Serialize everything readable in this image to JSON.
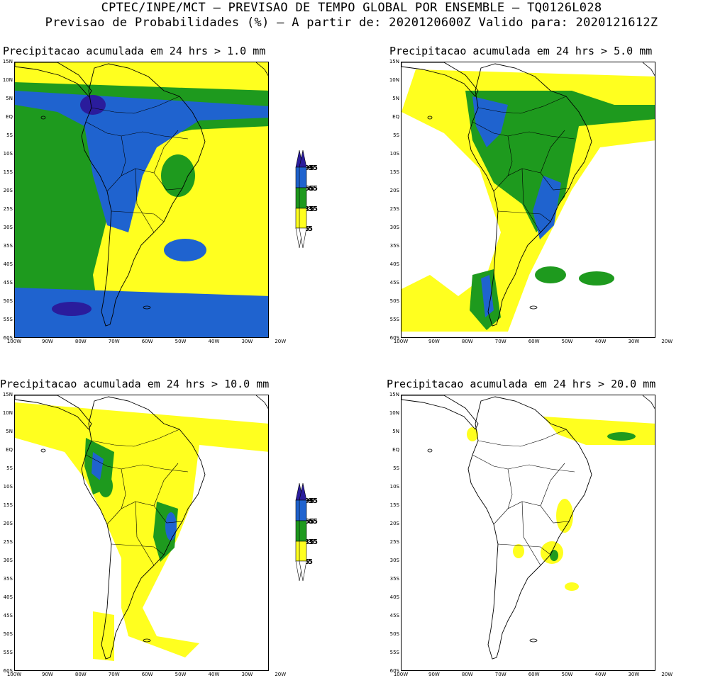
{
  "header": {
    "line1": "CPTEC/INPE/MCT – PREVISAO DE TEMPO GLOBAL POR ENSEMBLE – TQ0126L028",
    "line2": "Previsao de Probabilidades (%) –  A partir de: 2020120600Z  Valido para: 2020121612Z"
  },
  "panels": [
    {
      "title": "Precipitacao acumulada em 24 hrs > 1.0 mm",
      "coverage": "high"
    },
    {
      "title": "Precipitacao acumulada em 24 hrs > 5.0 mm",
      "coverage": "medium"
    },
    {
      "title": "Precipitacao acumulada em 24 hrs > 10.0 mm",
      "coverage": "low"
    },
    {
      "title": "Precipitacao acumulada em 24 hrs > 20.0 mm",
      "coverage": "minimal"
    }
  ],
  "lat_labels": [
    "15N",
    "10N",
    "5N",
    "EQ",
    "5S",
    "10S",
    "15S",
    "20S",
    "25S",
    "30S",
    "35S",
    "40S",
    "45S",
    "50S",
    "55S",
    "60S"
  ],
  "lon_labels": [
    "100W",
    "90W",
    "80W",
    "70W",
    "60W",
    "50W",
    "40W",
    "30W",
    "20W"
  ],
  "legend": {
    "levels": [
      "95",
      "65",
      "35",
      "5"
    ],
    "colors": {
      "c95": "#2a1c9c",
      "c65": "#1f63cf",
      "c35": "#1e9a1e",
      "c5": "#ffff1f"
    }
  }
}
